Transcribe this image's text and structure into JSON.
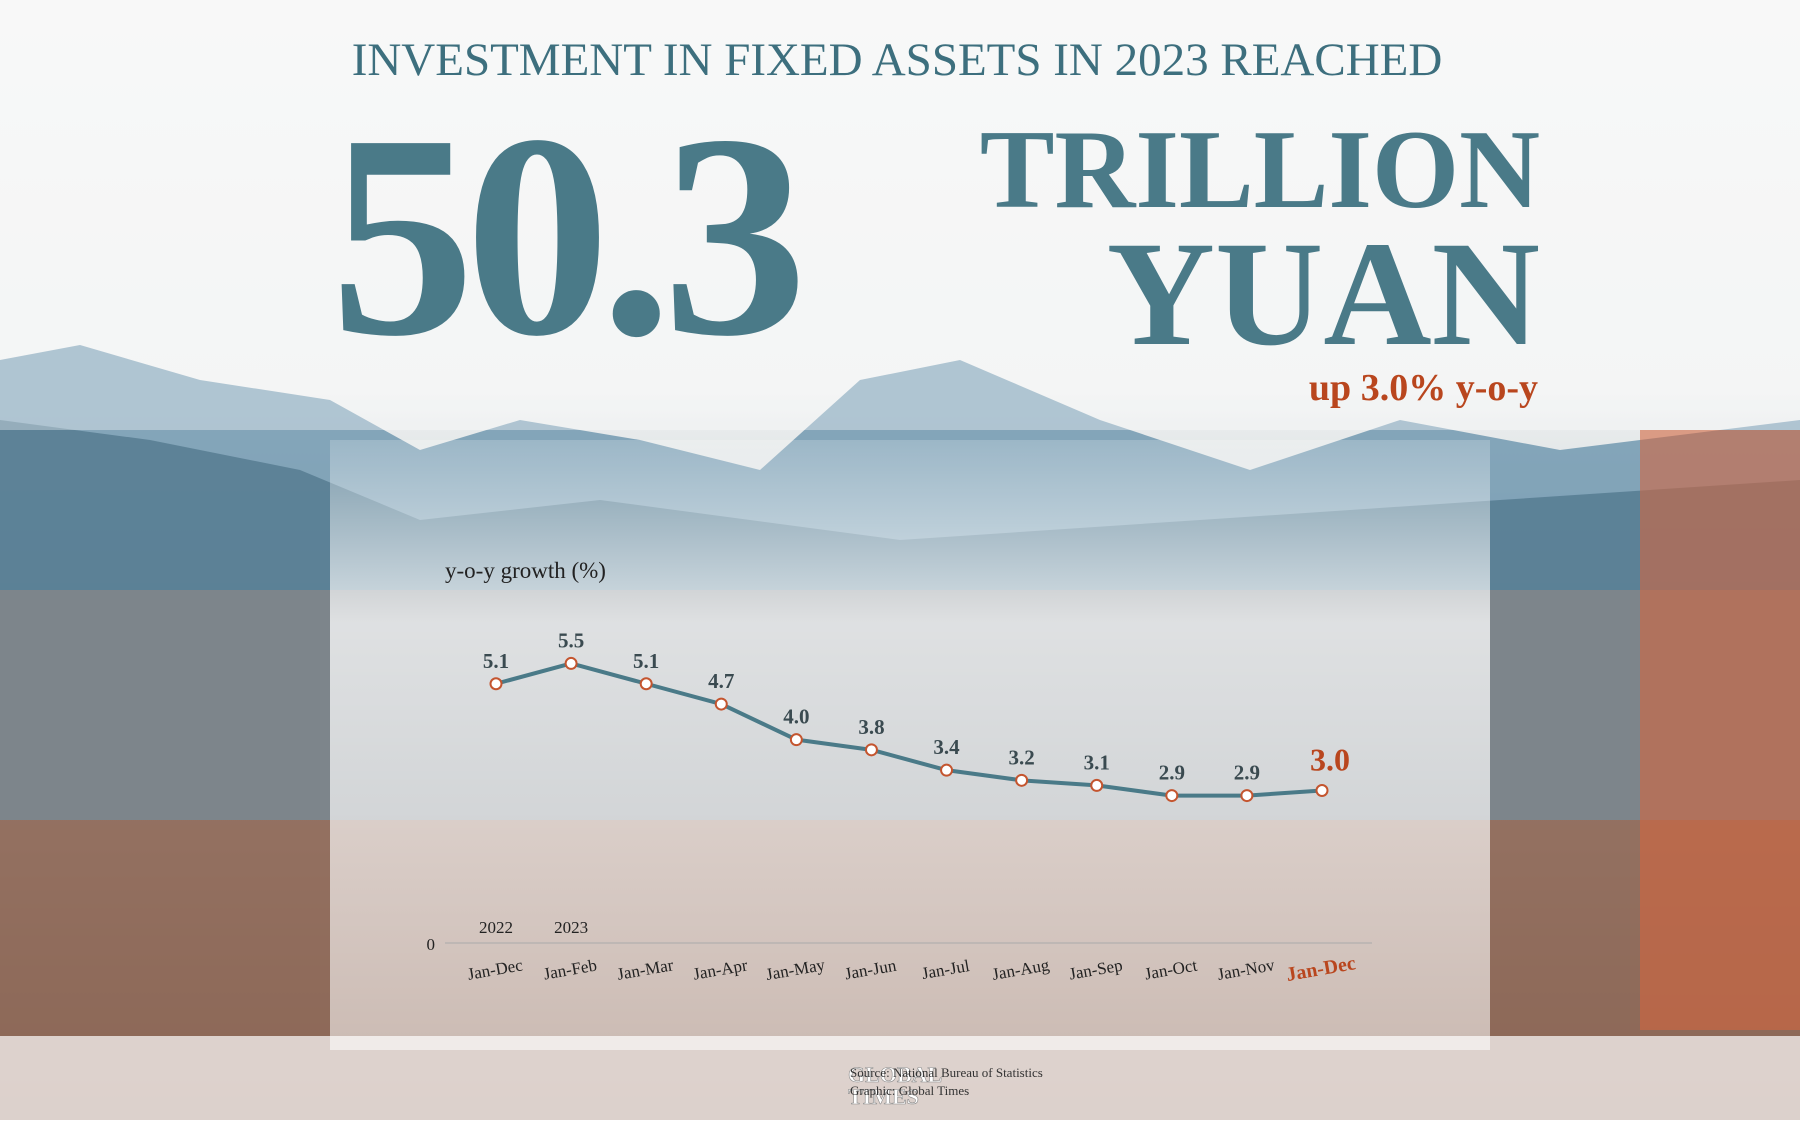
{
  "header": {
    "title": "INVESTMENT IN FIXED ASSETS IN 2023 REACHED",
    "amount": "50.3",
    "unit_line1": "TRILLION",
    "unit_line2": "YUAN",
    "growth": "up 3.0% y-o-y"
  },
  "chart_data": {
    "type": "line",
    "y_label": "y-o-y growth (%)",
    "year_labels": [
      "2022",
      "2023"
    ],
    "categories": [
      "Jan-Dec",
      "Jan-Feb",
      "Jan-Mar",
      "Jan-Apr",
      "Jan-May",
      "Jan-Jun",
      "Jan-Jul",
      "Jan-Aug",
      "Jan-Sep",
      "Jan-Oct",
      "Jan-Nov",
      "Jan-Dec"
    ],
    "values": [
      5.1,
      5.5,
      5.1,
      4.7,
      4.0,
      3.8,
      3.4,
      3.2,
      3.1,
      2.9,
      2.9,
      3.0
    ],
    "value_labels": [
      "5.1",
      "5.5",
      "5.1",
      "4.7",
      "4.0",
      "3.8",
      "3.4",
      "3.2",
      "3.1",
      "2.9",
      "2.9",
      "3.0"
    ],
    "color": "#4a7a88",
    "marker_color": "#c4552f",
    "highlight_color": "#b9461e",
    "ylim": [
      0,
      6
    ],
    "yticks": [
      0
    ]
  },
  "footer": {
    "logo_line1": "GLOBAL",
    "logo_line2": "TIMES",
    "source": "Source: National Bureau of Statistics",
    "credit": "Graphic: Global Times"
  }
}
